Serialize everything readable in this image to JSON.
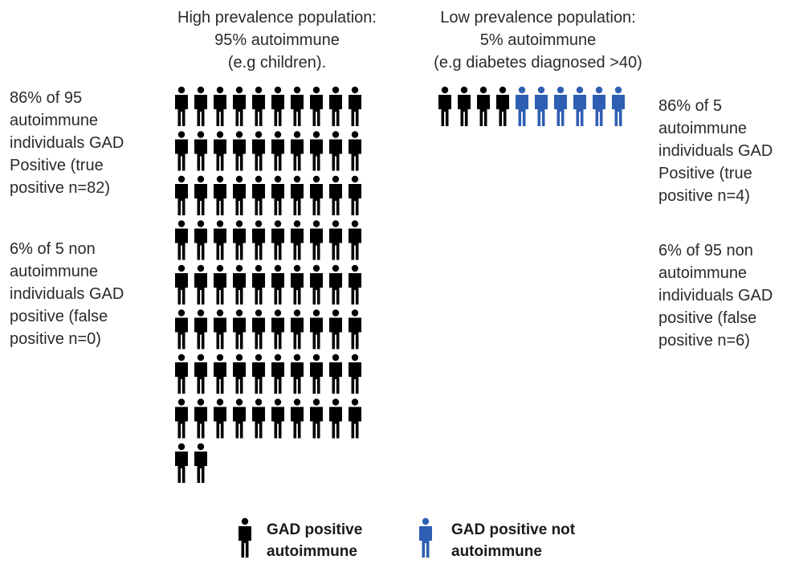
{
  "high_prevalence": {
    "heading": [
      "High prevalence population:",
      "95% autoimmune",
      "(e.g children)."
    ],
    "true_positive_note": [
      "86% of 95",
      "autoimmune",
      "individuals GAD",
      "Positive (true",
      "positive  n=82)"
    ],
    "false_positive_note": [
      "6% of 5 non",
      "autoimmune",
      "individuals GAD",
      "positive (false",
      "positive n=0)"
    ],
    "autoimmune_positive_count": 82,
    "non_autoimmune_positive_count": 0
  },
  "low_prevalence": {
    "heading": [
      "Low prevalence population:",
      "5% autoimmune",
      "(e.g diabetes diagnosed >40)"
    ],
    "true_positive_note": [
      "86% of 5",
      "autoimmune",
      "individuals GAD",
      "Positive (true",
      "positive  n=4)"
    ],
    "false_positive_note": [
      "6% of 95 non",
      "autoimmune",
      "individuals GAD",
      "positive (false",
      "positive n=6)"
    ],
    "autoimmune_positive_count": 4,
    "non_autoimmune_positive_count": 6
  },
  "legend": {
    "autoimmune": {
      "label": [
        "GAD positive",
        "autoimmune"
      ],
      "color": "#000000",
      "icon": "person-icon"
    },
    "not_autoimmune": {
      "label": [
        "GAD positive not",
        "autoimmune"
      ],
      "color": "#2f5fb3",
      "icon": "person-icon"
    }
  }
}
